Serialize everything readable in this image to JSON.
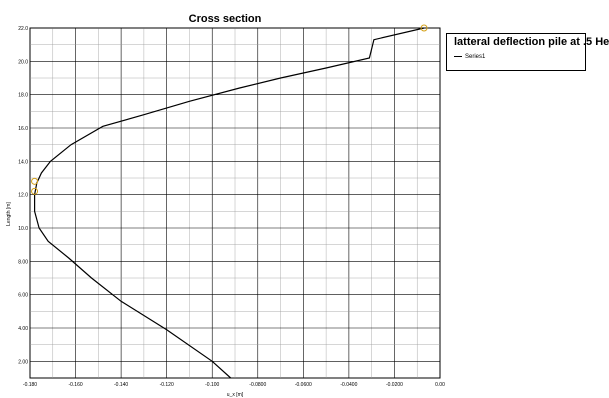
{
  "chart_data": {
    "type": "line",
    "title": "Cross section",
    "xlabel": "u_x [m]",
    "ylabel": "Length [m]",
    "xlim": [
      -0.18,
      0.0
    ],
    "ylim": [
      1.0,
      22.0
    ],
    "x_ticks": [
      -0.18,
      -0.16,
      -0.14,
      -0.12,
      -0.1,
      -0.08,
      -0.06,
      -0.04,
      -0.02,
      0.0
    ],
    "x_tick_labels": [
      "-0.180",
      "-0.160",
      "-0.140",
      "-0.120",
      "-0.100",
      "-0.0800",
      "-0.0600",
      "-0.0400",
      "-0.0200",
      "0.00"
    ],
    "y_ticks": [
      2,
      4,
      6,
      8,
      10,
      12,
      14,
      16,
      18,
      20,
      22
    ],
    "y_tick_labels": [
      "2.00",
      "4.00",
      "6.00",
      "8.00",
      "10.0",
      "12.0",
      "14.0",
      "16.0",
      "18.0",
      "20.0",
      "22.0"
    ],
    "grid": true,
    "legend_title": "latteral deflection pile at .5 He",
    "legend_position": "top-right",
    "series": [
      {
        "name": "Series1",
        "color": "#000000",
        "x": [
          -0.0919,
          -0.1,
          -0.12,
          -0.14,
          -0.153,
          -0.163,
          -0.172,
          -0.176,
          -0.178,
          -0.178,
          -0.177,
          -0.175,
          -0.171,
          -0.162,
          -0.148,
          -0.13,
          -0.11,
          -0.088,
          -0.07,
          -0.05,
          -0.031,
          -0.029,
          -0.007
        ],
        "y": [
          1.0,
          2.0,
          3.9,
          5.6,
          7.0,
          8.2,
          9.2,
          10.0,
          11.0,
          12.0,
          12.7,
          13.3,
          14.0,
          15.0,
          16.1,
          16.8,
          17.6,
          18.4,
          19.0,
          19.6,
          20.2,
          21.3,
          22.0
        ]
      }
    ],
    "markers": [
      {
        "x": -0.178,
        "y": 12.2
      },
      {
        "x": -0.178,
        "y": 12.8
      },
      {
        "x": -0.007,
        "y": 22.0
      }
    ],
    "marker_color": "#d4a017"
  }
}
